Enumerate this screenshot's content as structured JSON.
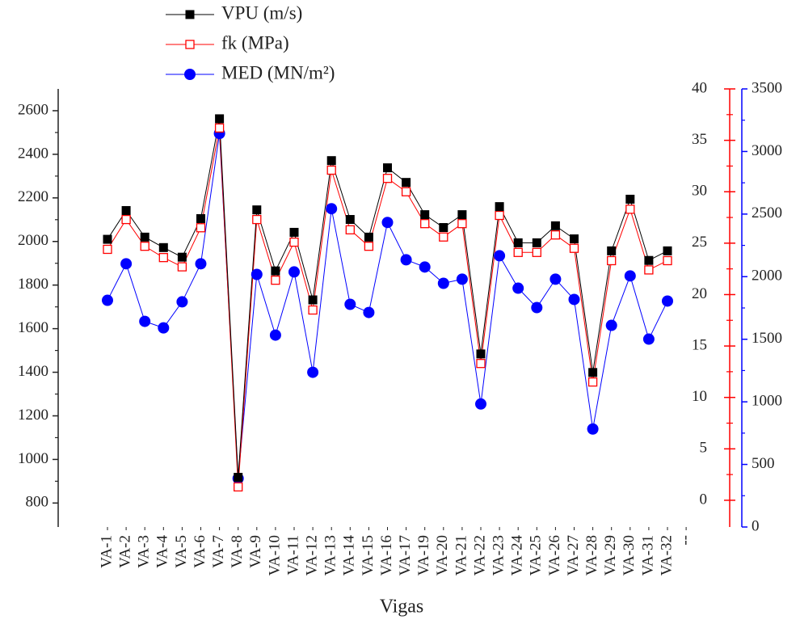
{
  "chart_data": {
    "type": "line",
    "x_label": "Vigas",
    "categories": [
      "VA-1",
      "VA-2",
      "VA-3",
      "VA-4",
      "VA-5",
      "VA-6",
      "VA-7",
      "VA-8",
      "VA-9",
      "VA-10",
      "VA-11",
      "VA-12",
      "VA-13",
      "VA-14",
      "VA-15",
      "VA-16",
      "VA-17",
      "VA-19",
      "VA-20",
      "VA-21",
      "VA-22",
      "VA-23",
      "VA-24",
      "VA-25",
      "VA-26",
      "VA-27",
      "VA-28",
      "VA-29",
      "VA-30",
      "VA-31",
      "VA-32",
      "--"
    ],
    "ylim": [
      690,
      2700
    ],
    "yticks": [
      800,
      1000,
      1200,
      1400,
      1600,
      1800,
      2000,
      2200,
      2400,
      2600
    ],
    "y_color": "#222222",
    "y2lim": [
      -2.6,
      40
    ],
    "y2ticks": [
      0,
      5,
      10,
      15,
      20,
      25,
      30,
      35,
      40
    ],
    "y2_color": "#ff0000",
    "y3lim": [
      0,
      3500
    ],
    "y3ticks": [
      0,
      500,
      1000,
      1500,
      2000,
      2500,
      3000,
      3500
    ],
    "y3_color": "#0000ff",
    "series": [
      {
        "name": "VPU (m/s)",
        "color": "#000000",
        "marker": "square",
        "axis": "y",
        "values": [
          2010,
          2142,
          2020,
          1972,
          1928,
          2105,
          2563,
          918,
          2145,
          1865,
          2042,
          1732,
          2371,
          2101,
          2020,
          2338,
          2271,
          2123,
          2064,
          2123,
          1484,
          2160,
          1994,
          1994,
          2072,
          2012,
          1399,
          1957,
          2194,
          1913,
          1957,
          null
        ]
      },
      {
        "name": "fk (MPa)",
        "color": "#ff0000",
        "marker": "open-square",
        "axis": "y2",
        "values": [
          24.4,
          27.3,
          24.7,
          23.6,
          22.7,
          26.5,
          36.2,
          1.3,
          27.3,
          21.4,
          25.1,
          18.5,
          32.1,
          26.3,
          24.7,
          31.3,
          30.0,
          26.9,
          25.6,
          26.9,
          13.3,
          27.7,
          24.1,
          24.1,
          25.8,
          24.5,
          11.5,
          23.3,
          28.3,
          22.4,
          23.3,
          null
        ]
      },
      {
        "name": "MED (MN/m²)",
        "color": "#0000ff",
        "marker": "circle",
        "axis": "y3",
        "values": [
          1811,
          2103,
          1643,
          1591,
          1799,
          2103,
          3144,
          388,
          2018,
          1533,
          2038,
          1236,
          2543,
          1779,
          1714,
          2433,
          2135,
          2077,
          1947,
          1980,
          983,
          2167,
          1908,
          1753,
          1980,
          1818,
          783,
          1611,
          2006,
          1501,
          1805,
          null
        ]
      }
    ]
  }
}
